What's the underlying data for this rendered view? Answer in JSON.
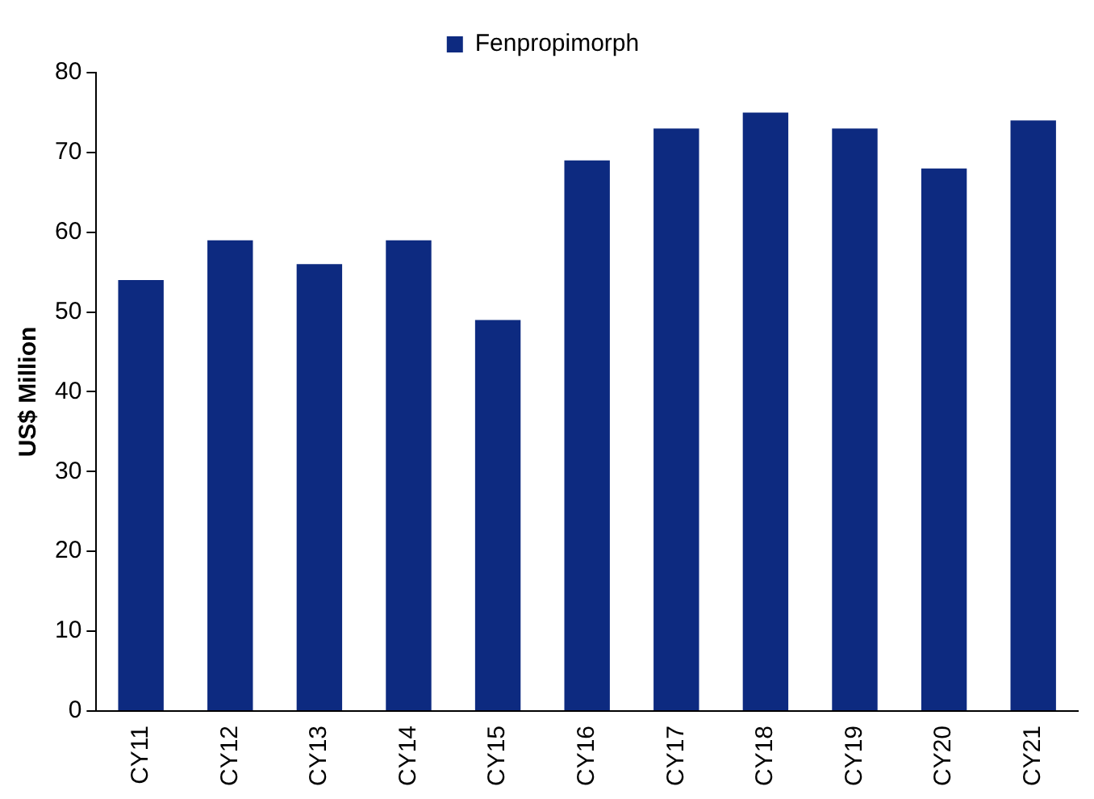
{
  "chart_data": {
    "type": "bar",
    "ylabel": "US$ Million",
    "categories": [
      "CY11",
      "CY12",
      "CY13",
      "CY14",
      "CY15",
      "CY16",
      "CY17",
      "CY18",
      "CY19",
      "CY20",
      "CY21"
    ],
    "series": [
      {
        "name": "Fenpropimorph",
        "color": "#0d2a80",
        "values": [
          54,
          59,
          56,
          59,
          49,
          69,
          73,
          75,
          73,
          68,
          74
        ]
      }
    ],
    "ylim": [
      0,
      80
    ],
    "yticks": [
      0,
      10,
      20,
      30,
      40,
      50,
      60,
      70,
      80
    ],
    "grid": false,
    "legend": "top"
  }
}
